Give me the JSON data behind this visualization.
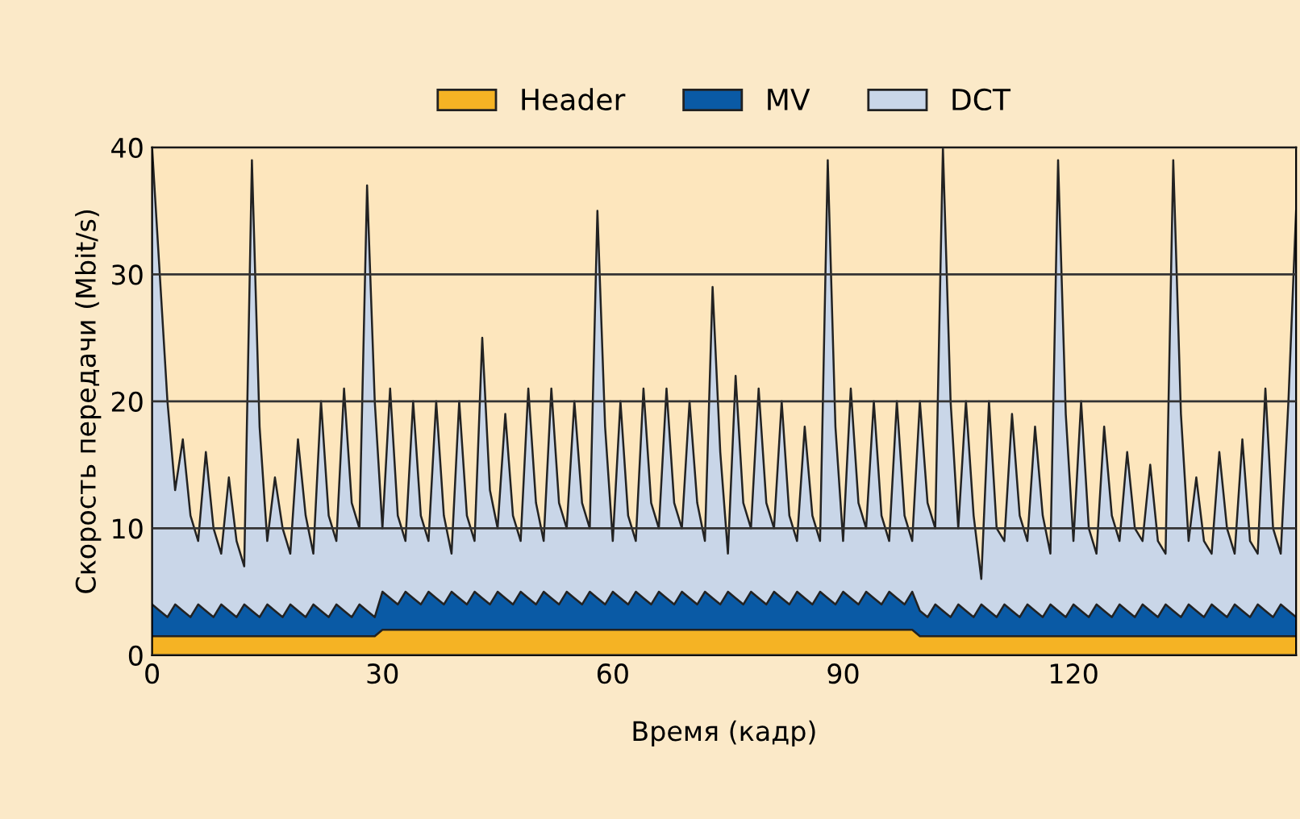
{
  "chart_data": {
    "type": "area",
    "stacked": true,
    "xlabel": "Время (кадр)",
    "ylabel": "Скорость передачи (Mbit/s)",
    "x": [
      0,
      1,
      2,
      3,
      4,
      5,
      6,
      7,
      8,
      9,
      10,
      11,
      12,
      13,
      14,
      15,
      16,
      17,
      18,
      19,
      20,
      21,
      22,
      23,
      24,
      25,
      26,
      27,
      28,
      29,
      30,
      31,
      32,
      33,
      34,
      35,
      36,
      37,
      38,
      39,
      40,
      41,
      42,
      43,
      44,
      45,
      46,
      47,
      48,
      49,
      50,
      51,
      52,
      53,
      54,
      55,
      56,
      57,
      58,
      59,
      60,
      61,
      62,
      63,
      64,
      65,
      66,
      67,
      68,
      69,
      70,
      71,
      72,
      73,
      74,
      75,
      76,
      77,
      78,
      79,
      80,
      81,
      82,
      83,
      84,
      85,
      86,
      87,
      88,
      89,
      90,
      91,
      92,
      93,
      94,
      95,
      96,
      97,
      98,
      99,
      100,
      101,
      102,
      103,
      104,
      105,
      106,
      107,
      108,
      109,
      110,
      111,
      112,
      113,
      114,
      115,
      116,
      117,
      118,
      119,
      120,
      121,
      122,
      123,
      124,
      125,
      126,
      127,
      128,
      129,
      130,
      131,
      132,
      133,
      134,
      135,
      136,
      137,
      138,
      139,
      140,
      141,
      142,
      143,
      144,
      145,
      146,
      147,
      148,
      149
    ],
    "series": [
      {
        "name": "Header",
        "color": "#f5b324",
        "values": [
          1.5,
          1.5,
          1.5,
          1.5,
          1.5,
          1.5,
          1.5,
          1.5,
          1.5,
          1.5,
          1.5,
          1.5,
          1.5,
          1.5,
          1.5,
          1.5,
          1.5,
          1.5,
          1.5,
          1.5,
          1.5,
          1.5,
          1.5,
          1.5,
          1.5,
          1.5,
          1.5,
          1.5,
          1.5,
          1.5,
          2,
          2,
          2,
          2,
          2,
          2,
          2,
          2,
          2,
          2,
          2,
          2,
          2,
          2,
          2,
          2,
          2,
          2,
          2,
          2,
          2,
          2,
          2,
          2,
          2,
          2,
          2,
          2,
          2,
          2,
          2,
          2,
          2,
          2,
          2,
          2,
          2,
          2,
          2,
          2,
          2,
          2,
          2,
          2,
          2,
          2,
          2,
          2,
          2,
          2,
          2,
          2,
          2,
          2,
          2,
          2,
          2,
          2,
          2,
          2,
          2,
          2,
          2,
          2,
          2,
          2,
          2,
          2,
          2,
          2,
          1.5,
          1.5,
          1.5,
          1.5,
          1.5,
          1.5,
          1.5,
          1.5,
          1.5,
          1.5,
          1.5,
          1.5,
          1.5,
          1.5,
          1.5,
          1.5,
          1.5,
          1.5,
          1.5,
          1.5,
          1.5,
          1.5,
          1.5,
          1.5,
          1.5,
          1.5,
          1.5,
          1.5,
          1.5,
          1.5,
          1.5,
          1.5,
          1.5,
          1.5,
          1.5,
          1.5,
          1.5,
          1.5,
          1.5,
          1.5,
          1.5,
          1.5,
          1.5,
          1.5,
          1.5,
          1.5,
          1.5,
          1.5,
          1.5,
          1.5
        ]
      },
      {
        "name": "MV",
        "color": "#0a5aa5",
        "values": [
          2.5,
          2,
          1.5,
          2.5,
          2,
          1.5,
          2.5,
          2,
          1.5,
          2.5,
          2,
          1.5,
          2.5,
          2,
          1.5,
          2.5,
          2,
          1.5,
          2.5,
          2,
          1.5,
          2.5,
          2,
          1.5,
          2.5,
          2,
          1.5,
          2.5,
          2,
          1.5,
          3,
          2.5,
          2,
          3,
          2.5,
          2,
          3,
          2.5,
          2,
          3,
          2.5,
          2,
          3,
          2.5,
          2,
          3,
          2.5,
          2,
          3,
          2.5,
          2,
          3,
          2.5,
          2,
          3,
          2.5,
          2,
          3,
          2.5,
          2,
          3,
          2.5,
          2,
          3,
          2.5,
          2,
          3,
          2.5,
          2,
          3,
          2.5,
          2,
          3,
          2.5,
          2,
          3,
          2.5,
          2,
          3,
          2.5,
          2,
          3,
          2.5,
          2,
          3,
          2.5,
          2,
          3,
          2.5,
          2,
          3,
          2.5,
          2,
          3,
          2.5,
          2,
          3,
          2.5,
          2,
          3,
          2,
          1.5,
          2.5,
          2,
          1.5,
          2.5,
          2,
          1.5,
          2.5,
          2,
          1.5,
          2.5,
          2,
          1.5,
          2.5,
          2,
          1.5,
          2.5,
          2,
          1.5,
          2.5,
          2,
          1.5,
          2.5,
          2,
          1.5,
          2.5,
          2,
          1.5,
          2.5,
          2,
          1.5,
          2.5,
          2,
          1.5,
          2.5,
          2,
          1.5,
          2.5,
          2,
          1.5,
          2.5,
          2,
          1.5,
          2.5,
          2,
          1.5,
          2.5,
          2,
          1.5
        ]
      },
      {
        "name": "DCT",
        "color": "#c9d6e8",
        "values": [
          36,
          26.5,
          17,
          9,
          13.5,
          8,
          5,
          12.5,
          7,
          4,
          10.5,
          6,
          3,
          35.5,
          15,
          5,
          10.5,
          7,
          4,
          13.5,
          8,
          4,
          16.5,
          8,
          5,
          17.5,
          9,
          6,
          33.5,
          17,
          5,
          16.5,
          7,
          4,
          15.5,
          7,
          4,
          15.5,
          7,
          3,
          15.5,
          7,
          4,
          20.5,
          9,
          5,
          14.5,
          7,
          4,
          16.5,
          8,
          4,
          16.5,
          8,
          5,
          15.5,
          8,
          5,
          30.5,
          14,
          4,
          15.5,
          7,
          4,
          16.5,
          8,
          5,
          16.5,
          8,
          5,
          15.5,
          8,
          4,
          24.5,
          12,
          3,
          17.5,
          8,
          5,
          16.5,
          8,
          5,
          15.5,
          7,
          4,
          13.5,
          7,
          4,
          34.5,
          14,
          4,
          16.5,
          8,
          5,
          15.5,
          7,
          4,
          15.5,
          7,
          4,
          16.5,
          9,
          6,
          36.5,
          17,
          6,
          16.5,
          8,
          2,
          16.5,
          7,
          5,
          15.5,
          8,
          5,
          14.5,
          8,
          4,
          35.5,
          16,
          5,
          16.5,
          7,
          4,
          14.5,
          8,
          5,
          12.5,
          7,
          5,
          11.5,
          6,
          4,
          35.5,
          16,
          5,
          10.5,
          6,
          4,
          12.5,
          7,
          4,
          13.5,
          6,
          4,
          17.5,
          7,
          4,
          16.5,
          32
        ]
      }
    ],
    "xlim": [
      0,
      149
    ],
    "xticks": [
      0,
      30,
      60,
      90,
      120
    ],
    "ylim": [
      0,
      40
    ],
    "yticks": [
      0,
      10,
      20,
      30,
      40
    ],
    "grid": "y",
    "legend": "top"
  }
}
